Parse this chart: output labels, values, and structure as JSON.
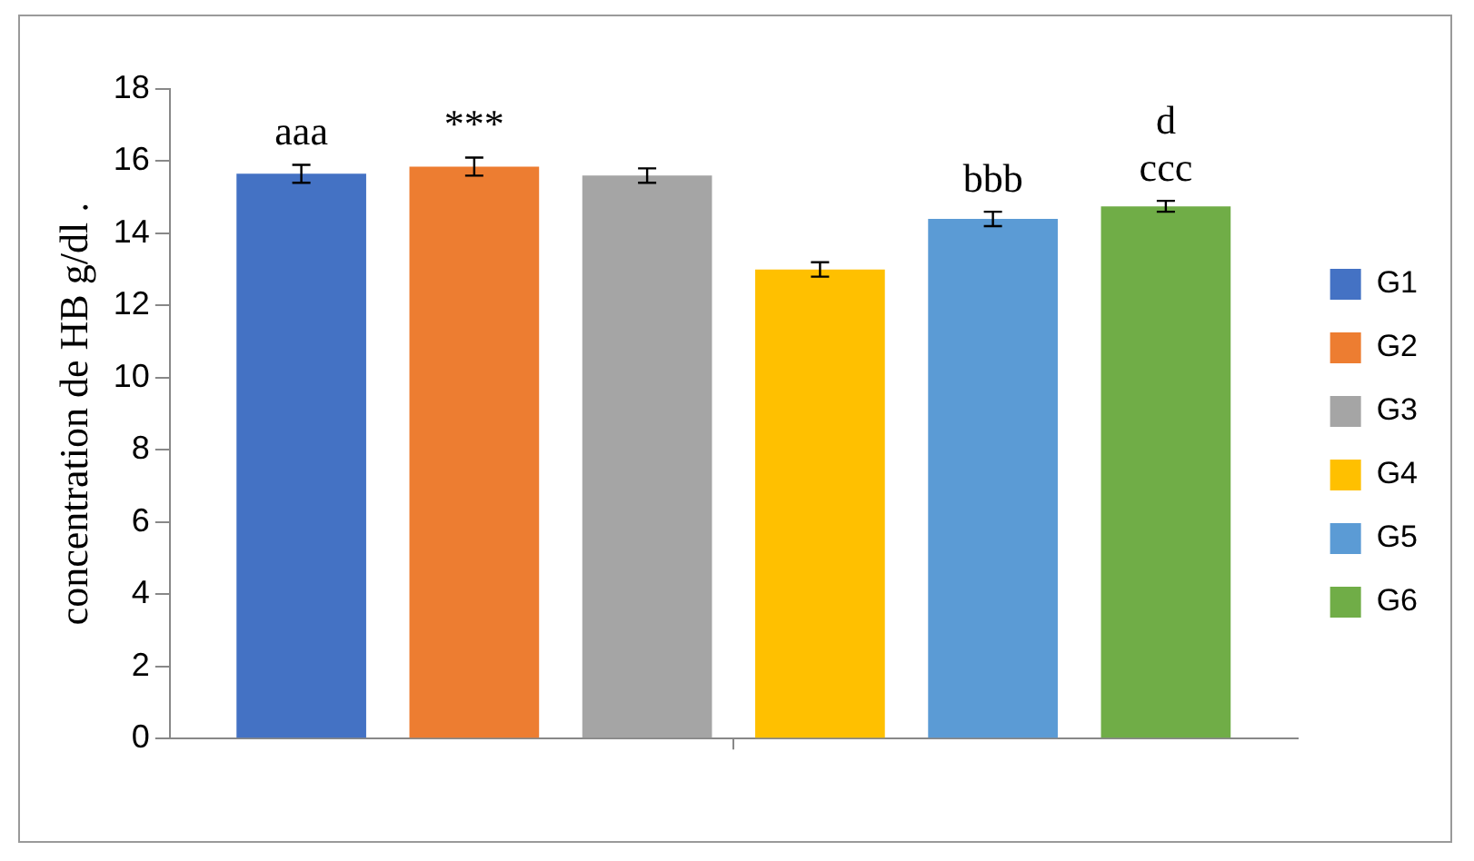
{
  "chart_data": {
    "type": "bar",
    "ylabel": "concentration de HB g/dl .",
    "categories": [
      null
    ],
    "series": [
      {
        "name": "G1",
        "color": "#4472c4",
        "values": [
          15.65
        ],
        "errors": [
          0.25
        ]
      },
      {
        "name": "G2",
        "color": "#ed7d31",
        "values": [
          15.85
        ],
        "errors": [
          0.25
        ]
      },
      {
        "name": "G3",
        "color": "#a5a5a5",
        "values": [
          15.6
        ],
        "errors": [
          0.2
        ]
      },
      {
        "name": "G4",
        "color": "#ffc000",
        "values": [
          13.0
        ],
        "errors": [
          0.2
        ]
      },
      {
        "name": "G5",
        "color": "#5b9bd5",
        "values": [
          14.4
        ],
        "errors": [
          0.2
        ]
      },
      {
        "name": "G6",
        "color": "#70ad47",
        "values": [
          14.75
        ],
        "errors": [
          0.15
        ]
      }
    ],
    "ylim": [
      0,
      18
    ],
    "yticks": [
      0,
      2,
      4,
      6,
      8,
      10,
      12,
      14,
      16,
      18
    ],
    "grid": false,
    "legend": "right",
    "annotations": [
      "aaa",
      "***",
      "bbb",
      "ccc",
      "d"
    ]
  }
}
